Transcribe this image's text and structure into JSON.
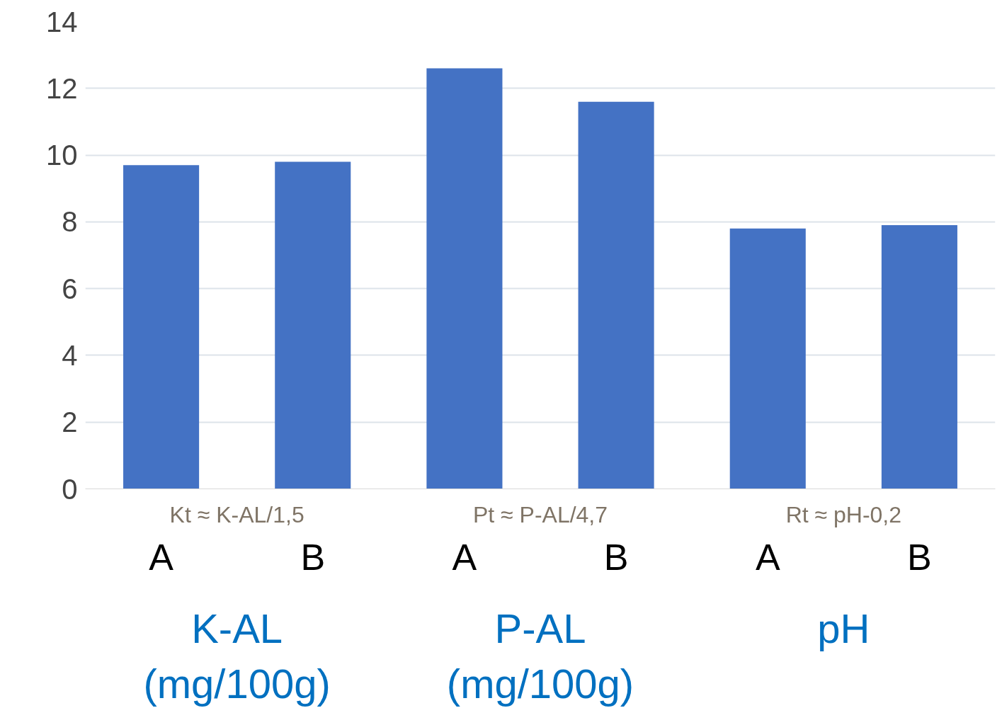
{
  "chart_data": {
    "type": "bar",
    "categories": [
      "A",
      "B",
      "A",
      "B",
      "A",
      "B"
    ],
    "values": [
      9.7,
      9.8,
      12.6,
      11.6,
      7.8,
      7.9
    ],
    "color": "#4472c4",
    "ylim": [
      0,
      14
    ],
    "yticks": [
      0,
      2,
      4,
      6,
      8,
      10,
      12,
      14
    ],
    "grid": "y",
    "annotations": [
      "Kt ≈ K-AL/1,5",
      "Pt ≈ P-AL/4,7",
      "Rt ≈ pH-0,2",
      "K-AL\n(mg/100g)",
      "P-AL\n(mg/100g)",
      "pH"
    ]
  }
}
